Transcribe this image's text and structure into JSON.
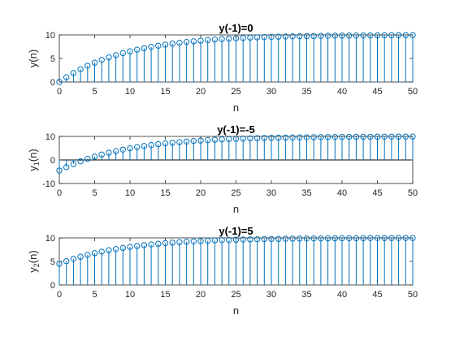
{
  "colors": {
    "stem": "#0072BD",
    "axis": "#262626",
    "background": "#ffffff"
  },
  "chart_data": [
    {
      "type": "stem",
      "title": "y(-1)=0",
      "xlabel": "n",
      "ylabel": "y(n)",
      "xlim": [
        0,
        50
      ],
      "ylim": [
        0,
        10
      ],
      "xticks": [
        "0",
        "5",
        "10",
        "15",
        "20",
        "25",
        "30",
        "35",
        "40",
        "45",
        "50"
      ],
      "yticks": [
        "0",
        "5",
        "10"
      ],
      "grid": false,
      "x": [
        0,
        1,
        2,
        3,
        4,
        5,
        6,
        7,
        8,
        9,
        10,
        11,
        12,
        13,
        14,
        15,
        16,
        17,
        18,
        19,
        20,
        21,
        22,
        23,
        24,
        25,
        26,
        27,
        28,
        29,
        30,
        31,
        32,
        33,
        34,
        35,
        36,
        37,
        38,
        39,
        40,
        41,
        42,
        43,
        44,
        45,
        46,
        47,
        48,
        49,
        50
      ],
      "values": [
        0.0,
        1.0,
        1.9,
        2.71,
        3.44,
        4.1,
        4.69,
        5.22,
        5.7,
        6.13,
        6.51,
        6.86,
        7.18,
        7.46,
        7.71,
        7.94,
        8.15,
        8.33,
        8.5,
        8.65,
        8.78,
        8.91,
        9.02,
        9.11,
        9.2,
        9.28,
        9.35,
        9.42,
        9.48,
        9.53,
        9.58,
        9.62,
        9.66,
        9.69,
        9.72,
        9.75,
        9.77,
        9.8,
        9.82,
        9.84,
        9.85,
        9.87,
        9.88,
        9.89,
        9.9,
        9.91,
        9.92,
        9.93,
        9.94,
        9.94,
        9.95
      ]
    },
    {
      "type": "stem",
      "title": "y(-1)=-5",
      "xlabel": "n",
      "ylabel": "y",
      "ylabel_subscript": "1",
      "ylabel_suffix": "(n)",
      "xlim": [
        0,
        50
      ],
      "ylim": [
        -10,
        10
      ],
      "xticks": [
        "0",
        "5",
        "10",
        "15",
        "20",
        "25",
        "30",
        "35",
        "40",
        "45",
        "50"
      ],
      "yticks": [
        "-10",
        "0",
        "10"
      ],
      "grid": false,
      "x": [
        0,
        1,
        2,
        3,
        4,
        5,
        6,
        7,
        8,
        9,
        10,
        11,
        12,
        13,
        14,
        15,
        16,
        17,
        18,
        19,
        20,
        21,
        22,
        23,
        24,
        25,
        26,
        27,
        28,
        29,
        30,
        31,
        32,
        33,
        34,
        35,
        36,
        37,
        38,
        39,
        40,
        41,
        42,
        43,
        44,
        45,
        46,
        47,
        48,
        49,
        50
      ],
      "values": [
        -4.5,
        -3.05,
        -1.75,
        -0.57,
        0.49,
        1.44,
        2.3,
        3.07,
        3.76,
        4.38,
        4.95,
        5.45,
        5.91,
        6.32,
        6.68,
        7.02,
        7.32,
        7.58,
        7.83,
        8.04,
        8.24,
        8.42,
        8.58,
        8.72,
        8.85,
        8.96,
        9.07,
        9.16,
        9.24,
        9.32,
        9.39,
        9.45,
        9.5,
        9.55,
        9.6,
        9.64,
        9.67,
        9.71,
        9.73,
        9.76,
        9.79,
        9.81,
        9.83,
        9.84,
        9.86,
        9.87,
        9.89,
        9.9,
        9.91,
        9.92,
        9.93
      ]
    },
    {
      "type": "stem",
      "title": "y(-1)=5",
      "xlabel": "n",
      "ylabel": "y",
      "ylabel_subscript": "2",
      "ylabel_suffix": "(n)",
      "xlim": [
        0,
        50
      ],
      "ylim": [
        0,
        10
      ],
      "xticks": [
        "0",
        "5",
        "10",
        "15",
        "20",
        "25",
        "30",
        "35",
        "40",
        "45",
        "50"
      ],
      "yticks": [
        "0",
        "5",
        "10"
      ],
      "grid": false,
      "x": [
        0,
        1,
        2,
        3,
        4,
        5,
        6,
        7,
        8,
        9,
        10,
        11,
        12,
        13,
        14,
        15,
        16,
        17,
        18,
        19,
        20,
        21,
        22,
        23,
        24,
        25,
        26,
        27,
        28,
        29,
        30,
        31,
        32,
        33,
        34,
        35,
        36,
        37,
        38,
        39,
        40,
        41,
        42,
        43,
        44,
        45,
        46,
        47,
        48,
        49,
        50
      ],
      "values": [
        4.5,
        5.05,
        5.55,
        5.99,
        6.39,
        6.75,
        7.08,
        7.37,
        7.64,
        7.87,
        8.09,
        8.28,
        8.45,
        8.61,
        8.75,
        8.87,
        8.99,
        9.09,
        9.18,
        9.26,
        9.34,
        9.4,
        9.46,
        9.52,
        9.56,
        9.61,
        9.65,
        9.68,
        9.71,
        9.74,
        9.77,
        9.79,
        9.81,
        9.83,
        9.85,
        9.86,
        9.88,
        9.89,
        9.9,
        9.91,
        9.92,
        9.93,
        9.94,
        9.94,
        9.95,
        9.95,
        9.96,
        9.96,
        9.97,
        9.97,
        9.97
      ]
    }
  ]
}
